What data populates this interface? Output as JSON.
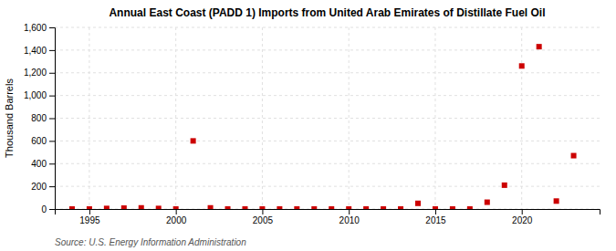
{
  "chart_data": {
    "type": "scatter",
    "title": "Annual East Coast (PADD 1) Imports from United Arab Emirates of Distillate Fuel Oil",
    "ylabel": "Thousand Barrels",
    "source": "Source: U.S. Energy Information Administration",
    "x": [
      1994,
      1995,
      1996,
      1997,
      1998,
      1999,
      2000,
      2001,
      2002,
      2003,
      2004,
      2005,
      2006,
      2007,
      2008,
      2009,
      2010,
      2011,
      2012,
      2013,
      2014,
      2015,
      2016,
      2017,
      2018,
      2019,
      2020,
      2021,
      2022,
      2023
    ],
    "values": [
      0,
      0,
      5,
      8,
      10,
      5,
      0,
      600,
      10,
      0,
      0,
      0,
      0,
      0,
      0,
      0,
      0,
      0,
      0,
      0,
      50,
      0,
      0,
      0,
      60,
      210,
      1260,
      1430,
      70,
      470
    ],
    "color": "#cc0000",
    "marker": "square",
    "xlim": [
      1993.0,
      2024.5
    ],
    "xticks": [
      1995,
      2000,
      2005,
      2010,
      2015,
      2020
    ],
    "ylim": [
      0,
      1600
    ],
    "yticks": [
      0,
      200,
      400,
      600,
      800,
      {
        "value": 1000,
        "label": "1,000"
      },
      {
        "value": 1200,
        "label": "1,200"
      },
      {
        "value": 1400,
        "label": "1,400"
      },
      {
        "value": 1600,
        "label": "1,600"
      }
    ],
    "grid": true
  }
}
